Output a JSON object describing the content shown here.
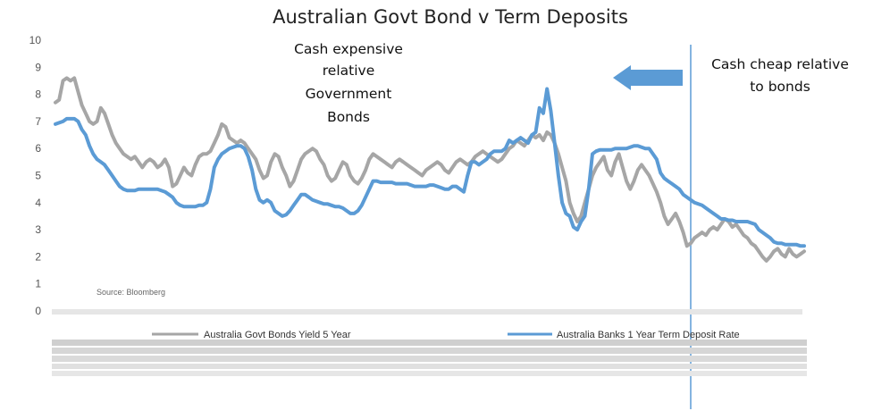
{
  "chart_data": {
    "type": "line",
    "title": "Australian Govt Bond v Term Deposits",
    "xlabel": "",
    "ylabel": "",
    "ylim": [
      0,
      10
    ],
    "yticks": [
      "10",
      "9",
      "8",
      "7",
      "6",
      "5",
      "4",
      "3",
      "2",
      "1",
      "0"
    ],
    "grid": false,
    "legend_position": "bottom",
    "source": "Source: Bloomberg",
    "annotations": {
      "cash_expensive": [
        "Cash expensive",
        "relative",
        "Government",
        "Bonds"
      ],
      "cash_cheap": [
        "Cash cheap relative",
        "to bonds"
      ]
    },
    "series": [
      {
        "name": "Australia Govt Bonds Yield 5 Year",
        "color": "#a6a6a6",
        "values": [
          7.7,
          7.8,
          8.5,
          8.6,
          8.5,
          8.6,
          8.1,
          7.6,
          7.3,
          7.0,
          6.9,
          7.0,
          7.5,
          7.3,
          6.9,
          6.5,
          6.2,
          6.0,
          5.8,
          5.7,
          5.6,
          5.7,
          5.5,
          5.3,
          5.5,
          5.6,
          5.5,
          5.3,
          5.4,
          5.6,
          5.3,
          4.6,
          4.7,
          5.0,
          5.3,
          5.1,
          5.0,
          5.4,
          5.7,
          5.8,
          5.8,
          5.9,
          6.2,
          6.5,
          6.9,
          6.8,
          6.4,
          6.3,
          6.2,
          6.3,
          6.2,
          6.0,
          5.8,
          5.6,
          5.2,
          4.9,
          5.0,
          5.5,
          5.8,
          5.7,
          5.3,
          5.0,
          4.6,
          4.8,
          5.2,
          5.6,
          5.8,
          5.9,
          6.0,
          5.9,
          5.6,
          5.4,
          5.0,
          4.8,
          4.9,
          5.2,
          5.5,
          5.4,
          5.0,
          4.8,
          4.7,
          4.9,
          5.2,
          5.6,
          5.8,
          5.7,
          5.6,
          5.5,
          5.4,
          5.3,
          5.5,
          5.6,
          5.5,
          5.4,
          5.3,
          5.2,
          5.1,
          5.0,
          5.2,
          5.3,
          5.4,
          5.5,
          5.4,
          5.2,
          5.1,
          5.3,
          5.5,
          5.6,
          5.5,
          5.4,
          5.5,
          5.7,
          5.8,
          5.9,
          5.8,
          5.7,
          5.6,
          5.5,
          5.6,
          5.8,
          6.0,
          6.1,
          6.3,
          6.2,
          6.1,
          6.3,
          6.5,
          6.4,
          6.5,
          6.3,
          6.6,
          6.5,
          6.2,
          5.8,
          5.3,
          4.8,
          4.0,
          3.6,
          3.3,
          3.5,
          4.0,
          4.5,
          5.0,
          5.3,
          5.5,
          5.7,
          5.2,
          5.0,
          5.5,
          5.8,
          5.3,
          4.8,
          4.5,
          4.8,
          5.2,
          5.4,
          5.2,
          5.0,
          4.7,
          4.4,
          4.0,
          3.5,
          3.2,
          3.4,
          3.6,
          3.3,
          2.9,
          2.4,
          2.5,
          2.7,
          2.8,
          2.9,
          2.8,
          3.0,
          3.1,
          3.0,
          3.2,
          3.4,
          3.3,
          3.1,
          3.2,
          3.0,
          2.8,
          2.7,
          2.5,
          2.4,
          2.2,
          2.0,
          1.85,
          2.0,
          2.2,
          2.3,
          2.1,
          2.0,
          2.3,
          2.1,
          2.0,
          2.1,
          2.2
        ]
      },
      {
        "name": "Australia Banks 1 Year Term Deposit Rate",
        "color": "#5b9bd5",
        "values": [
          6.9,
          6.95,
          7.0,
          7.1,
          7.1,
          7.1,
          7.0,
          6.7,
          6.5,
          6.1,
          5.8,
          5.6,
          5.5,
          5.4,
          5.2,
          5.0,
          4.8,
          4.6,
          4.5,
          4.45,
          4.45,
          4.45,
          4.5,
          4.5,
          4.5,
          4.5,
          4.5,
          4.5,
          4.45,
          4.4,
          4.3,
          4.2,
          4.0,
          3.9,
          3.85,
          3.85,
          3.85,
          3.85,
          3.9,
          3.9,
          4.0,
          4.5,
          5.3,
          5.6,
          5.8,
          5.9,
          6.0,
          6.05,
          6.1,
          6.1,
          6.0,
          5.7,
          5.2,
          4.5,
          4.1,
          4.0,
          4.1,
          4.0,
          3.7,
          3.6,
          3.5,
          3.55,
          3.7,
          3.9,
          4.1,
          4.3,
          4.3,
          4.2,
          4.1,
          4.05,
          4.0,
          3.95,
          3.95,
          3.9,
          3.85,
          3.85,
          3.8,
          3.7,
          3.6,
          3.6,
          3.7,
          3.9,
          4.2,
          4.5,
          4.8,
          4.8,
          4.75,
          4.75,
          4.75,
          4.75,
          4.7,
          4.7,
          4.7,
          4.7,
          4.65,
          4.6,
          4.6,
          4.6,
          4.6,
          4.65,
          4.65,
          4.6,
          4.55,
          4.5,
          4.5,
          4.6,
          4.6,
          4.5,
          4.4,
          5.0,
          5.5,
          5.5,
          5.4,
          5.5,
          5.6,
          5.8,
          5.9,
          5.9,
          5.9,
          6.0,
          6.3,
          6.2,
          6.3,
          6.4,
          6.3,
          6.2,
          6.5,
          6.6,
          7.5,
          7.3,
          8.2,
          7.4,
          6.2,
          5.0,
          4.0,
          3.6,
          3.5,
          3.1,
          3.0,
          3.3,
          3.5,
          4.5,
          5.8,
          5.9,
          5.95,
          5.95,
          5.95,
          5.95,
          6.0,
          6.0,
          6.0,
          6.0,
          6.05,
          6.1,
          6.1,
          6.05,
          6.0,
          6.0,
          5.8,
          5.6,
          5.1,
          4.9,
          4.8,
          4.7,
          4.6,
          4.5,
          4.3,
          4.2,
          4.1,
          4.0,
          3.95,
          3.9,
          3.8,
          3.7,
          3.6,
          3.5,
          3.4,
          3.4,
          3.35,
          3.35,
          3.3,
          3.3,
          3.3,
          3.3,
          3.25,
          3.2,
          3.0,
          2.9,
          2.8,
          2.7,
          2.55,
          2.5,
          2.5,
          2.45,
          2.45,
          2.45,
          2.45,
          2.4,
          2.4
        ]
      }
    ]
  }
}
